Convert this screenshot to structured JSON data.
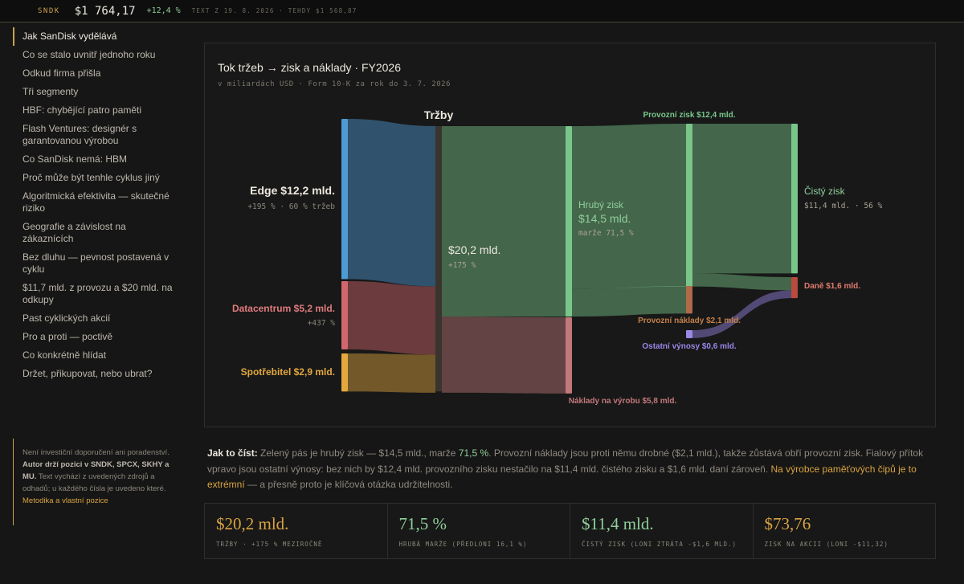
{
  "ticker": {
    "symbol": "SNDK",
    "price": "$1 764,17",
    "change": "+12,4 %",
    "note": "TEXT Z 19. 8. 2026 · TEHDY $1 568,87"
  },
  "sidebar": {
    "items": [
      {
        "label": "Jak SanDisk vydělává",
        "active": true
      },
      {
        "label": "Co se stalo uvnitř jednoho roku"
      },
      {
        "label": "Odkud firma přišla"
      },
      {
        "label": "Tři segmenty"
      },
      {
        "label": "HBF: chybějící patro paměti"
      },
      {
        "label": "Flash Ventures: designér s garantovanou výrobou"
      },
      {
        "label": "Co SanDisk nemá: HBM"
      },
      {
        "label": "Proč může být tenhle cyklus jiný"
      },
      {
        "label": "Algoritmická efektivita — skutečné riziko"
      },
      {
        "label": "Geografie a závislost na zákaznících"
      },
      {
        "label": "Bez dluhu — pevnost postavená v cyklu"
      },
      {
        "label": "$11,7 mld. z provozu a $20 mld. na odkupy"
      },
      {
        "label": "Past cyklických akcií"
      },
      {
        "label": "Pro a proti — poctivě"
      },
      {
        "label": "Co konkrétně hlídat"
      },
      {
        "label": "Držet, přikupovat, nebo ubrat?"
      }
    ],
    "disclaimer": {
      "p1": "Není investiční doporučení ani poradenství. ",
      "p2": "Autor drží pozici v SNDK, SPCX, SKHY a MU.",
      "p3": " Text vychází z uvedených zdrojů a odhadů; u každého čísla je uvedeno které. ",
      "link": "Metodika a vlastní pozice"
    }
  },
  "chart_data": {
    "type": "sankey",
    "title": "Tok tržeb → zisk a náklady · FY2026",
    "subtitle": "v miliardách USD · Form 10-K za rok do 3. 7. 2026",
    "nodes": [
      {
        "id": "edge",
        "label": "Edge $12,2 mld.",
        "sublabel": "+195 % · 60 % tržeb",
        "value": 12.2,
        "color": "#4e9ad2"
      },
      {
        "id": "datacenter",
        "label": "Datacentrum $5,2 mld.",
        "sublabel": "+437 %",
        "value": 5.2,
        "color": "#d1676c"
      },
      {
        "id": "consumer",
        "label": "Spotřebitel $2,9 mld.",
        "sublabel": "",
        "value": 2.9,
        "color": "#e3a83e"
      },
      {
        "id": "revenue",
        "label": "$20,2 mld.",
        "sublabel": "+175 %",
        "header": "Tržby",
        "value": 20.2,
        "color": "#3a342e"
      },
      {
        "id": "gross",
        "label": "Hrubý zisk",
        "label2": "$14,5 mld.",
        "sublabel": "marže 71,5 %",
        "value": 14.5,
        "color": "#79c68a"
      },
      {
        "id": "cogs",
        "label": "Náklady na výrobu $5,8 mld.",
        "value": 5.8,
        "color": "#c2787a"
      },
      {
        "id": "opinc",
        "label": "Provozní zisk $12,4 mld.",
        "value": 12.4,
        "color": "#79c68a"
      },
      {
        "id": "opex",
        "label": "Provozní náklady $2,1 mld.",
        "value": 2.1,
        "color": "#b06a47"
      },
      {
        "id": "other",
        "label": "Ostatní výnosy $0,6 mld.",
        "value": 0.6,
        "color": "#9a87e6"
      },
      {
        "id": "net",
        "label": "Čistý zisk",
        "sublabel": "$11,4 mld. · 56 %",
        "value": 11.4,
        "color": "#79c68a"
      },
      {
        "id": "tax",
        "label": "Daně $1,6 mld.",
        "value": 1.6,
        "color": "#b84a3e"
      }
    ],
    "links": [
      {
        "source": "edge",
        "target": "revenue",
        "value": 12.2
      },
      {
        "source": "datacenter",
        "target": "revenue",
        "value": 5.2
      },
      {
        "source": "consumer",
        "target": "revenue",
        "value": 2.9
      },
      {
        "source": "revenue",
        "target": "gross",
        "value": 14.5
      },
      {
        "source": "revenue",
        "target": "cogs",
        "value": 5.8
      },
      {
        "source": "gross",
        "target": "opinc",
        "value": 12.4
      },
      {
        "source": "gross",
        "target": "opex",
        "value": 2.1
      },
      {
        "source": "opinc",
        "target": "net",
        "value": 11.4
      },
      {
        "source": "opinc",
        "target": "tax",
        "value": 1.0
      },
      {
        "source": "other",
        "target": "tax",
        "value": 0.6
      }
    ]
  },
  "explain": {
    "lead": "Jak to číst:",
    "t1": " Zelený pás je hrubý zisk — $14,5 mld., marže ",
    "t1g": "71,5 %",
    "t2": ". Provozní náklady jsou proti němu drobné ($2,1 mld.), takže zůstává obří provozní zisk. Fialový přítok vpravo jsou ostatní výnosy: bez nich by $12,4 mld. provozního zisku nestačilo na $11,4 mld. čistého zisku a $1,6 mld. daní zároveň. ",
    "t2y": "Na výrobce paměťových čipů je to extrémní",
    "t3": " — a přesně proto je klíčová otázka udržitelnosti."
  },
  "kpis": [
    {
      "value": "$20,2 mld.",
      "label": "Tržby · +175 % meziročně",
      "color": "#d9a441"
    },
    {
      "value": "71,5 %",
      "label": "Hrubá marže (předloni 16,1 %)",
      "color": "#8fcf9a"
    },
    {
      "value": "$11,4 mld.",
      "label": "Čistý zisk (loni ztráta -$1,6 mld.)",
      "color": "#8fcf9a"
    },
    {
      "value": "$73,76",
      "label": "Zisk na akcii (loni -$11,32)",
      "color": "#d9a441"
    }
  ]
}
